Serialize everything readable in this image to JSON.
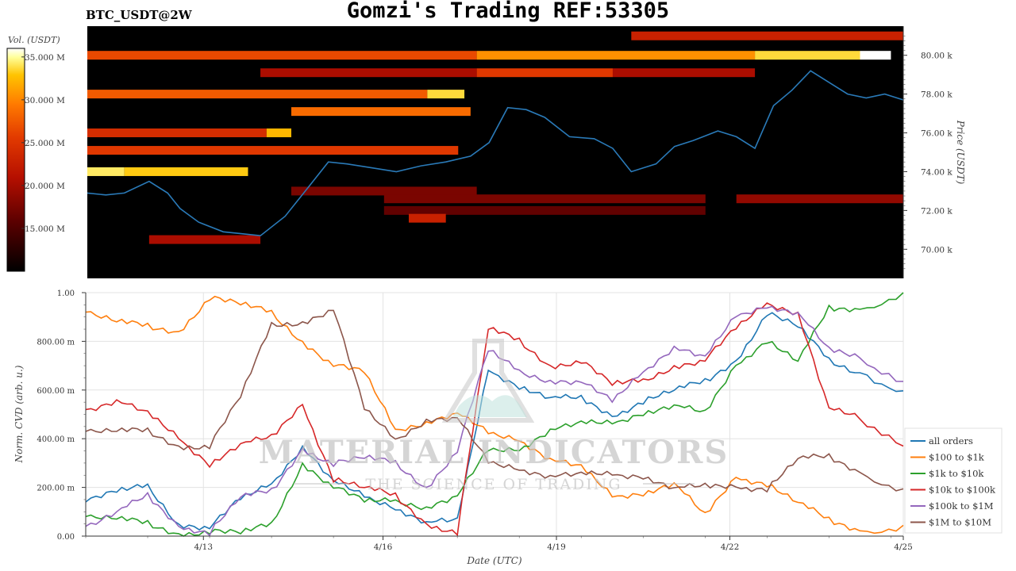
{
  "header": {
    "title": "Gomzi's Trading REF:53305",
    "symbol": "BTC_USDT@2W"
  },
  "colors": {
    "heatmap_bg": "#000000",
    "price_line": "#2a7ab8",
    "scale": [
      "#000000",
      "#5a0000",
      "#b50f00",
      "#e23a00",
      "#ff7a00",
      "#ffc300",
      "#ffff99",
      "#ffffff"
    ]
  },
  "colorbar": {
    "label": "Vol. (USDT)",
    "ticks": [
      "35.000 M",
      "30.000 M",
      "25.000 M",
      "20.000 M",
      "15.000 M"
    ],
    "tick_values": [
      35,
      30,
      25,
      20,
      15
    ],
    "range": [
      10,
      36
    ]
  },
  "watermark": {
    "line1": "MATERIAL INDICATORS",
    "line2": "THE SCIENCE OF TRADING"
  },
  "chart_data": [
    {
      "type": "heatmap",
      "title": "BTC_USDT@2W",
      "ylabel": "Price (USDT)",
      "y_ticks": [
        "80.00 k",
        "78.00 k",
        "76.00 k",
        "74.00 k",
        "72.00 k",
        "70.00 k"
      ],
      "y_tick_values": [
        80,
        78,
        76,
        74,
        72,
        70
      ],
      "ylim": [
        68.5,
        81.5
      ],
      "x_days": [
        0,
        13.2
      ],
      "price_series_days": [
        0,
        0.3,
        0.6,
        1.0,
        1.3,
        1.5,
        1.8,
        2.2,
        2.5,
        2.8,
        3.2,
        3.6,
        3.9,
        4.2,
        4.6,
        5.0,
        5.4,
        5.8,
        6.2,
        6.5,
        6.8,
        7.1,
        7.4,
        7.8,
        8.2,
        8.5,
        8.8,
        9.2,
        9.5,
        9.8,
        10.2,
        10.5,
        10.8,
        11.1,
        11.4,
        11.7,
        12.0,
        12.3,
        12.6,
        12.9,
        13.2
      ],
      "price_series_k": [
        72.9,
        72.8,
        72.9,
        73.5,
        72.9,
        72.1,
        71.4,
        70.9,
        70.8,
        70.7,
        71.7,
        73.3,
        74.5,
        74.4,
        74.2,
        74.0,
        74.3,
        74.5,
        74.8,
        75.5,
        77.3,
        77.2,
        76.8,
        75.8,
        75.7,
        75.2,
        74.0,
        74.4,
        75.3,
        75.6,
        76.1,
        75.8,
        75.2,
        77.4,
        78.2,
        79.2,
        78.6,
        78.0,
        77.8,
        78.0,
        77.7
      ],
      "bands": [
        {
          "price": 81.0,
          "start": 8.8,
          "end": 13.2,
          "vol": 19
        },
        {
          "price": 80.0,
          "start": 0,
          "end": 6.3,
          "vol": 22
        },
        {
          "price": 80.0,
          "start": 6.3,
          "end": 10.8,
          "vol": 26
        },
        {
          "price": 80.0,
          "start": 10.8,
          "end": 12.5,
          "vol": 30
        },
        {
          "price": 80.0,
          "start": 12.5,
          "end": 13.0,
          "vol": 36
        },
        {
          "price": 79.1,
          "start": 2.8,
          "end": 6.3,
          "vol": 17
        },
        {
          "price": 79.1,
          "start": 6.3,
          "end": 8.5,
          "vol": 21
        },
        {
          "price": 79.1,
          "start": 8.5,
          "end": 10.8,
          "vol": 17
        },
        {
          "price": 78.0,
          "start": 0,
          "end": 5.5,
          "vol": 23
        },
        {
          "price": 78.0,
          "start": 5.5,
          "end": 6.1,
          "vol": 30
        },
        {
          "price": 77.1,
          "start": 3.3,
          "end": 6.2,
          "vol": 24
        },
        {
          "price": 76.0,
          "start": 0,
          "end": 2.9,
          "vol": 20
        },
        {
          "price": 76.0,
          "start": 2.9,
          "end": 3.3,
          "vol": 28
        },
        {
          "price": 75.1,
          "start": 0,
          "end": 6.0,
          "vol": 21
        },
        {
          "price": 74.0,
          "start": 0,
          "end": 0.6,
          "vol": 31
        },
        {
          "price": 74.0,
          "start": 0.6,
          "end": 2.6,
          "vol": 29
        },
        {
          "price": 73.0,
          "start": 3.3,
          "end": 6.3,
          "vol": 15
        },
        {
          "price": 72.6,
          "start": 4.8,
          "end": 10.0,
          "vol": 15
        },
        {
          "price": 72.6,
          "start": 10.5,
          "end": 13.2,
          "vol": 16
        },
        {
          "price": 72.0,
          "start": 4.8,
          "end": 10.0,
          "vol": 14
        },
        {
          "price": 71.6,
          "start": 5.2,
          "end": 5.8,
          "vol": 19
        },
        {
          "price": 70.5,
          "start": 1.0,
          "end": 2.8,
          "vol": 17
        }
      ]
    },
    {
      "type": "line",
      "xlabel": "Date (UTC)",
      "ylabel": "Norm. CVD (arb. u.)",
      "x_ticks": [
        "4/13",
        "4/16",
        "4/19",
        "4/22",
        "4/25"
      ],
      "x_tick_values": [
        1.9,
        4.8,
        7.6,
        10.4,
        13.2
      ],
      "y_ticks": [
        "1.00",
        "800.00 m",
        "600.00 m",
        "400.00 m",
        "200.00 m",
        "0.00"
      ],
      "y_tick_values": [
        1.0,
        0.8,
        0.6,
        0.4,
        0.2,
        0.0
      ],
      "xlim": [
        0,
        13.2
      ],
      "ylim": [
        0,
        1
      ],
      "legend_position": "right",
      "x": [
        0,
        0.5,
        1.0,
        1.5,
        2.0,
        2.5,
        3.0,
        3.5,
        4.0,
        4.5,
        5.0,
        5.5,
        6.0,
        6.5,
        7.0,
        7.5,
        8.0,
        8.5,
        9.0,
        9.5,
        10.0,
        10.5,
        11.0,
        11.5,
        12.0,
        12.5,
        13.2
      ],
      "series": [
        {
          "name": "all orders",
          "color": "#1f77b4",
          "values": [
            0.14,
            0.18,
            0.21,
            0.05,
            0.03,
            0.15,
            0.22,
            0.37,
            0.22,
            0.16,
            0.12,
            0.06,
            0.06,
            0.68,
            0.62,
            0.57,
            0.56,
            0.49,
            0.56,
            0.6,
            0.63,
            0.72,
            0.92,
            0.86,
            0.72,
            0.67,
            0.59
          ]
        },
        {
          "name": "$100 to $1k",
          "color": "#ff7f0e",
          "values": [
            0.92,
            0.88,
            0.86,
            0.84,
            0.98,
            0.95,
            0.92,
            0.8,
            0.7,
            0.67,
            0.44,
            0.47,
            0.5,
            0.42,
            0.4,
            0.32,
            0.28,
            0.16,
            0.18,
            0.22,
            0.08,
            0.24,
            0.22,
            0.14,
            0.06,
            0.02,
            0.03
          ]
        },
        {
          "name": "$1k to $10k",
          "color": "#2ca02c",
          "values": [
            0.08,
            0.07,
            0.05,
            0.01,
            0.02,
            0.01,
            0.05,
            0.3,
            0.2,
            0.14,
            0.15,
            0.12,
            0.16,
            0.35,
            0.36,
            0.44,
            0.46,
            0.46,
            0.51,
            0.54,
            0.5,
            0.7,
            0.81,
            0.72,
            0.93,
            0.93,
            0.99
          ]
        },
        {
          "name": "$10k to $100k",
          "color": "#d62728",
          "values": [
            0.52,
            0.56,
            0.5,
            0.4,
            0.3,
            0.38,
            0.4,
            0.54,
            0.24,
            0.2,
            0.16,
            0.05,
            0.02,
            0.85,
            0.8,
            0.7,
            0.72,
            0.62,
            0.64,
            0.7,
            0.72,
            0.85,
            0.96,
            0.92,
            0.52,
            0.48,
            0.36
          ]
        },
        {
          "name": "$100k to $1M",
          "color": "#9467bd",
          "values": [
            0.04,
            0.1,
            0.16,
            0.04,
            0.02,
            0.16,
            0.18,
            0.36,
            0.3,
            0.32,
            0.3,
            0.2,
            0.35,
            0.76,
            0.68,
            0.64,
            0.63,
            0.55,
            0.68,
            0.78,
            0.73,
            0.9,
            0.95,
            0.92,
            0.76,
            0.73,
            0.62
          ]
        },
        {
          "name": "$1M to $10M",
          "color": "#8c564b",
          "values": [
            0.43,
            0.43,
            0.43,
            0.37,
            0.37,
            0.57,
            0.87,
            0.88,
            0.93,
            0.52,
            0.4,
            0.48,
            0.48,
            0.3,
            0.28,
            0.25,
            0.25,
            0.25,
            0.25,
            0.2,
            0.2,
            0.2,
            0.2,
            0.32,
            0.32,
            0.26,
            0.18
          ]
        }
      ]
    }
  ]
}
